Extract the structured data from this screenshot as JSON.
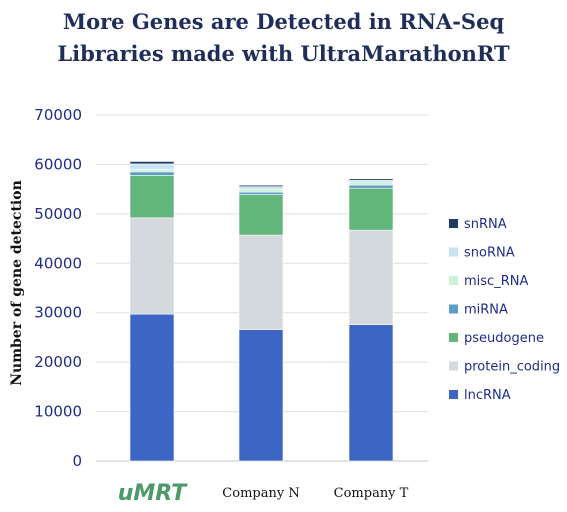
{
  "title": {
    "line1": "More Genes are Detected in RNA-Seq",
    "line2": "Libraries made with UltraMarathonRT"
  },
  "chart_data": {
    "type": "bar",
    "stacked": true,
    "title": "More Genes are Detected in RNA-Seq Libraries made with UltraMarathonRT",
    "xlabel": "",
    "ylabel": "Number of gene detection",
    "ylim": [
      0,
      70000
    ],
    "yticks": [
      0,
      10000,
      20000,
      30000,
      40000,
      50000,
      60000,
      70000
    ],
    "grid": true,
    "legend_position": "right",
    "categories": [
      "uMRT",
      "Company N",
      "Company T"
    ],
    "series": [
      {
        "name": "lncRNA",
        "color": "#3d66c4",
        "values": [
          29700,
          26600,
          27600
        ]
      },
      {
        "name": "protein_coding",
        "color": "#d3d9dc",
        "values": [
          19500,
          19100,
          19100
        ]
      },
      {
        "name": "pseudogene",
        "color": "#62b57b",
        "values": [
          8600,
          8200,
          8500
        ]
      },
      {
        "name": "miRNA",
        "color": "#5b9cc4",
        "values": [
          700,
          500,
          600
        ]
      },
      {
        "name": "misc_RNA",
        "color": "#ccf2d6",
        "values": [
          500,
          600,
          500
        ]
      },
      {
        "name": "snoRNA",
        "color": "#c7e2f3",
        "values": [
          1100,
          500,
          500
        ]
      },
      {
        "name": "snRNA",
        "color": "#1f3a66",
        "values": [
          500,
          300,
          300
        ]
      }
    ]
  }
}
